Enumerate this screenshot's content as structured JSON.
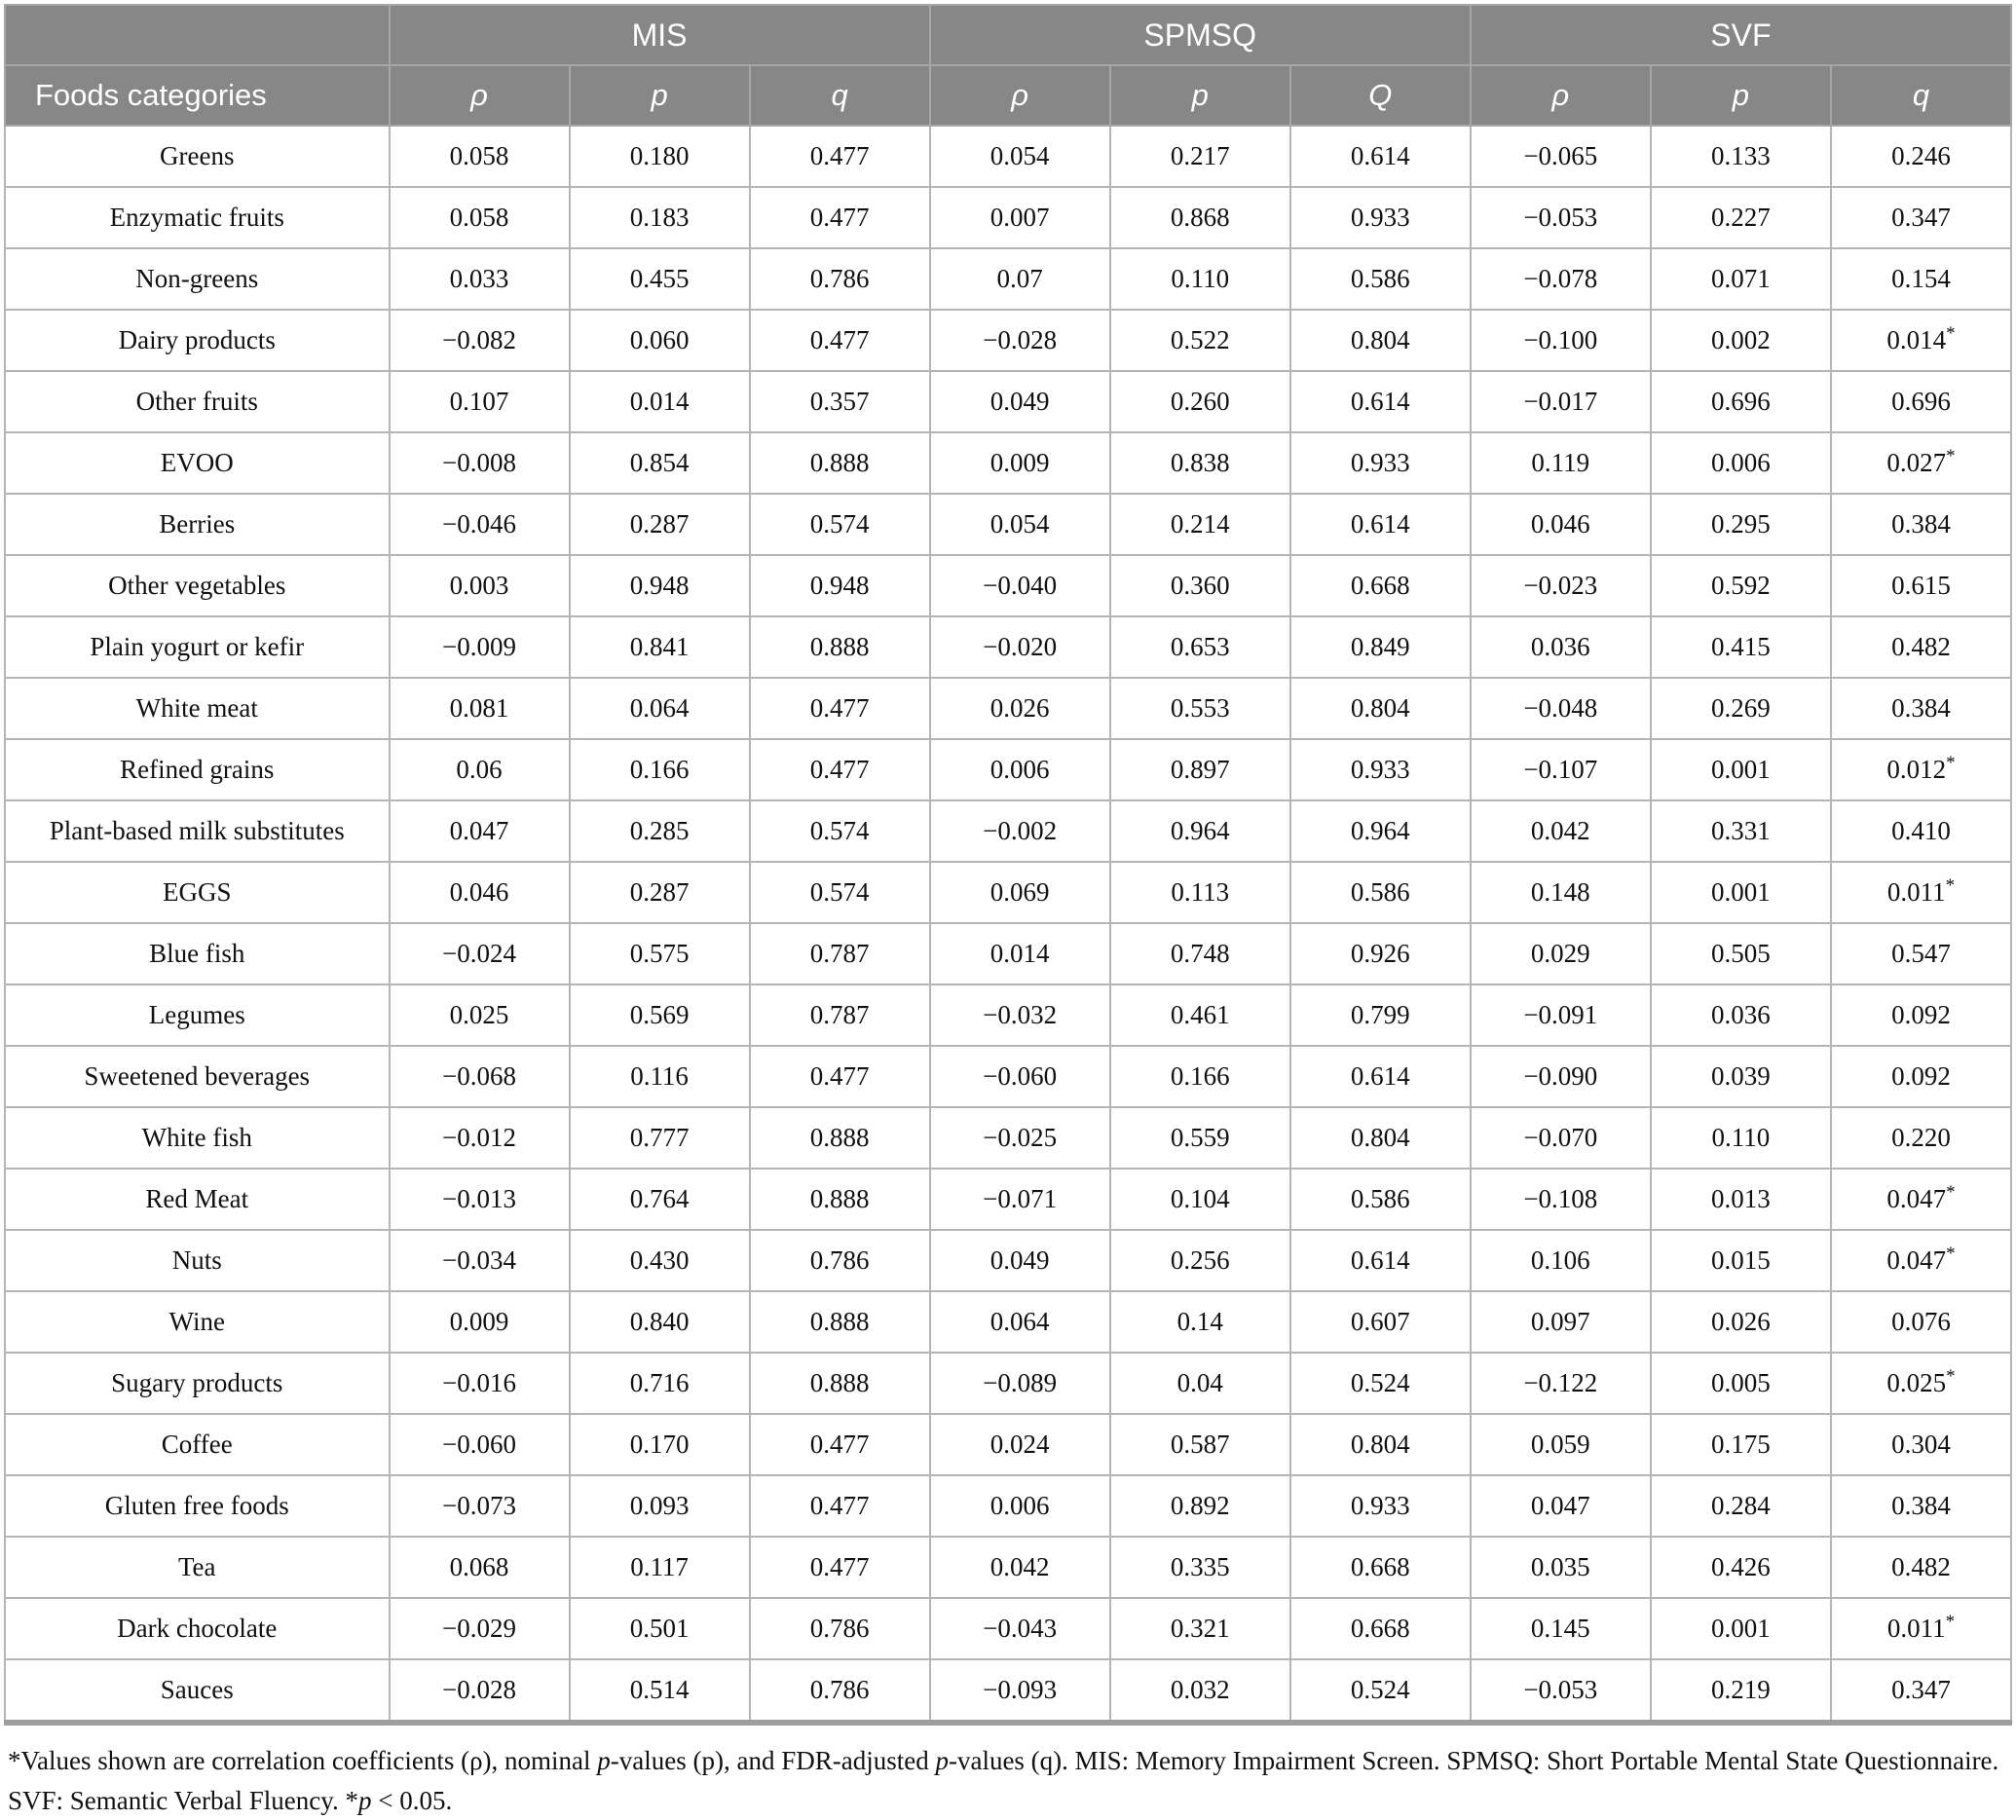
{
  "colors": {
    "header_bg": "#878787",
    "header_border": "#a6a6a6",
    "body_border": "#b5b5b5",
    "bottom_border": "#9e9e9e",
    "text": "#111111",
    "header_text": "#ffffff"
  },
  "table": {
    "header": {
      "foods_label": "Foods categories",
      "groups": [
        "MIS",
        "SPMSQ",
        "SVF"
      ],
      "subcols": [
        "ρ",
        "p",
        "q",
        "ρ",
        "p",
        "Q",
        "ρ",
        "p",
        "q"
      ]
    },
    "rows": [
      {
        "label": "Greens",
        "values": [
          "0.058",
          "0.180",
          "0.477",
          "0.054",
          "0.217",
          "0.614",
          "−0.065",
          "0.133",
          "0.246"
        ]
      },
      {
        "label": "Enzymatic fruits",
        "values": [
          "0.058",
          "0.183",
          "0.477",
          "0.007",
          "0.868",
          "0.933",
          "−0.053",
          "0.227",
          "0.347"
        ]
      },
      {
        "label": "Non-greens",
        "values": [
          "0.033",
          "0.455",
          "0.786",
          "0.07",
          "0.110",
          "0.586",
          "−0.078",
          "0.071",
          "0.154"
        ]
      },
      {
        "label": "Dairy products",
        "values": [
          "−0.082",
          "0.060",
          "0.477",
          "−0.028",
          "0.522",
          "0.804",
          "−0.100",
          "0.002",
          "0.014*"
        ]
      },
      {
        "label": "Other fruits",
        "values": [
          "0.107",
          "0.014",
          "0.357",
          "0.049",
          "0.260",
          "0.614",
          "−0.017",
          "0.696",
          "0.696"
        ]
      },
      {
        "label": "EVOO",
        "values": [
          "−0.008",
          "0.854",
          "0.888",
          "0.009",
          "0.838",
          "0.933",
          "0.119",
          "0.006",
          "0.027*"
        ]
      },
      {
        "label": "Berries",
        "values": [
          "−0.046",
          "0.287",
          "0.574",
          "0.054",
          "0.214",
          "0.614",
          "0.046",
          "0.295",
          "0.384"
        ]
      },
      {
        "label": "Other vegetables",
        "values": [
          "0.003",
          "0.948",
          "0.948",
          "−0.040",
          "0.360",
          "0.668",
          "−0.023",
          "0.592",
          "0.615"
        ]
      },
      {
        "label": "Plain yogurt or kefir",
        "values": [
          "−0.009",
          "0.841",
          "0.888",
          "−0.020",
          "0.653",
          "0.849",
          "0.036",
          "0.415",
          "0.482"
        ]
      },
      {
        "label": "White meat",
        "values": [
          "0.081",
          "0.064",
          "0.477",
          "0.026",
          "0.553",
          "0.804",
          "−0.048",
          "0.269",
          "0.384"
        ]
      },
      {
        "label": "Refined grains",
        "values": [
          "0.06",
          "0.166",
          "0.477",
          "0.006",
          "0.897",
          "0.933",
          "−0.107",
          "0.001",
          "0.012*"
        ]
      },
      {
        "label": "Plant-based milk substitutes",
        "values": [
          "0.047",
          "0.285",
          "0.574",
          "−0.002",
          "0.964",
          "0.964",
          "0.042",
          "0.331",
          "0.410"
        ]
      },
      {
        "label": "EGGS",
        "values": [
          "0.046",
          "0.287",
          "0.574",
          "0.069",
          "0.113",
          "0.586",
          "0.148",
          "0.001",
          "0.011*"
        ]
      },
      {
        "label": "Blue fish",
        "values": [
          "−0.024",
          "0.575",
          "0.787",
          "0.014",
          "0.748",
          "0.926",
          "0.029",
          "0.505",
          "0.547"
        ]
      },
      {
        "label": "Legumes",
        "values": [
          "0.025",
          "0.569",
          "0.787",
          "−0.032",
          "0.461",
          "0.799",
          "−0.091",
          "0.036",
          "0.092"
        ]
      },
      {
        "label": "Sweetened beverages",
        "values": [
          "−0.068",
          "0.116",
          "0.477",
          "−0.060",
          "0.166",
          "0.614",
          "−0.090",
          "0.039",
          "0.092"
        ]
      },
      {
        "label": "White fish",
        "values": [
          "−0.012",
          "0.777",
          "0.888",
          "−0.025",
          "0.559",
          "0.804",
          "−0.070",
          "0.110",
          "0.220"
        ]
      },
      {
        "label": "Red Meat",
        "values": [
          "−0.013",
          "0.764",
          "0.888",
          "−0.071",
          "0.104",
          "0.586",
          "−0.108",
          "0.013",
          "0.047*"
        ]
      },
      {
        "label": "Nuts",
        "values": [
          "−0.034",
          "0.430",
          "0.786",
          "0.049",
          "0.256",
          "0.614",
          "0.106",
          "0.015",
          "0.047*"
        ]
      },
      {
        "label": "Wine",
        "values": [
          "0.009",
          "0.840",
          "0.888",
          "0.064",
          "0.14",
          "0.607",
          "0.097",
          "0.026",
          "0.076"
        ]
      },
      {
        "label": "Sugary products",
        "values": [
          "−0.016",
          "0.716",
          "0.888",
          "−0.089",
          "0.04",
          "0.524",
          "−0.122",
          "0.005",
          "0.025*"
        ]
      },
      {
        "label": "Coffee",
        "values": [
          "−0.060",
          "0.170",
          "0.477",
          "0.024",
          "0.587",
          "0.804",
          "0.059",
          "0.175",
          "0.304"
        ]
      },
      {
        "label": "Gluten free foods",
        "values": [
          "−0.073",
          "0.093",
          "0.477",
          "0.006",
          "0.892",
          "0.933",
          "0.047",
          "0.284",
          "0.384"
        ]
      },
      {
        "label": "Tea",
        "values": [
          "0.068",
          "0.117",
          "0.477",
          "0.042",
          "0.335",
          "0.668",
          "0.035",
          "0.426",
          "0.482"
        ]
      },
      {
        "label": "Dark chocolate",
        "values": [
          "−0.029",
          "0.501",
          "0.786",
          "−0.043",
          "0.321",
          "0.668",
          "0.145",
          "0.001",
          "0.011*"
        ]
      },
      {
        "label": "Sauces",
        "values": [
          "−0.028",
          "0.514",
          "0.786",
          "−0.093",
          "0.032",
          "0.524",
          "−0.053",
          "0.219",
          "0.347"
        ]
      }
    ]
  },
  "footnote": {
    "segments": [
      {
        "text": "*Values shown are correlation coefficients (ρ), nominal "
      },
      {
        "text": "p",
        "italic": true
      },
      {
        "text": "-values (p), and FDR-adjusted "
      },
      {
        "text": "p",
        "italic": true
      },
      {
        "text": "-values (q). MIS: Memory Impairment Screen. SPMSQ: Short Portable Mental State Questionnaire. SVF: Semantic Verbal Fluency. *"
      },
      {
        "text": "p",
        "italic": true
      },
      {
        "text": " < 0.05."
      }
    ]
  }
}
